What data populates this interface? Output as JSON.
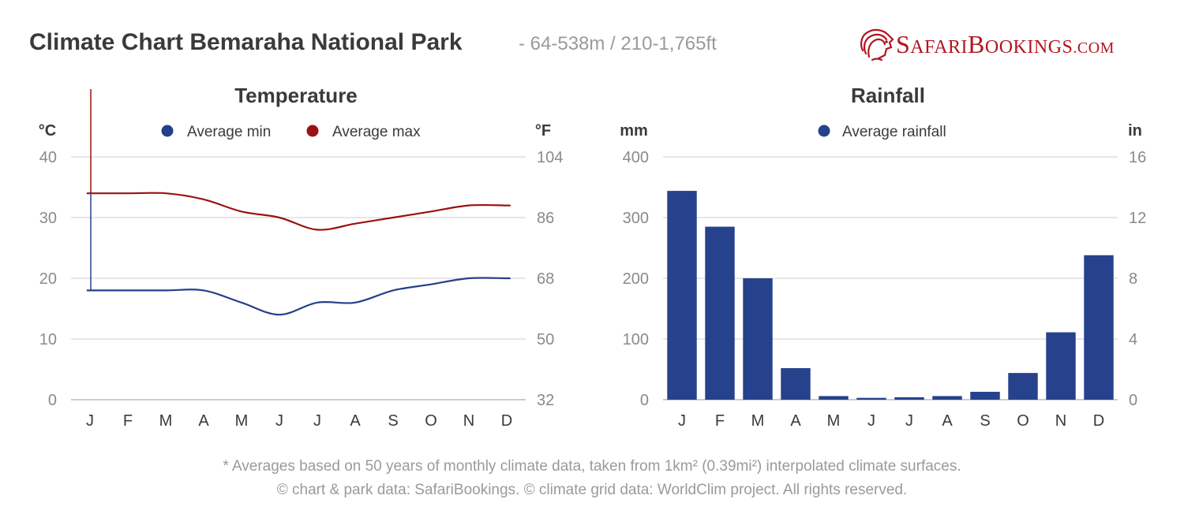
{
  "header": {
    "title": "Climate Chart Bemaraha National Park",
    "subtitle": "- 64-538m / 210-1,765ft",
    "logo": {
      "first": "S",
      "first_rest": "AFARI",
      "second": "B",
      "second_rest": "OOKINGS",
      "domain": ".COM",
      "icon": "lion-head-icon",
      "color": "#b1151f"
    }
  },
  "footer": {
    "line1": "* Averages based on 50 years of monthly climate data, taken from 1km² (0.39mi²) interpolated climate surfaces.",
    "line2": "© chart & park data: SafariBookings. © climate grid data: WorldClim project. All rights reserved."
  },
  "chart_data": [
    {
      "type": "line",
      "title": "Temperature",
      "ylabel_left": "°C",
      "ylabel_right": "°F",
      "categories": [
        "J",
        "F",
        "M",
        "A",
        "M",
        "J",
        "J",
        "A",
        "S",
        "O",
        "N",
        "D"
      ],
      "ylim": [
        0,
        40
      ],
      "yticks_left": [
        "40",
        "30",
        "20",
        "10",
        "0"
      ],
      "yticks_right": [
        "104",
        "86",
        "68",
        "50",
        "32"
      ],
      "grid": true,
      "legend": "top-center",
      "series": [
        {
          "name": "Average min",
          "color": "#263f8a",
          "values": [
            18,
            18,
            18,
            18,
            16,
            14,
            16,
            16,
            18,
            19,
            20,
            20
          ]
        },
        {
          "name": "Average max",
          "color": "#9b1212",
          "values": [
            34,
            34,
            34,
            33,
            31,
            30,
            28,
            29,
            30,
            31,
            32,
            32
          ]
        }
      ]
    },
    {
      "type": "bar",
      "title": "Rainfall",
      "ylabel_left": "mm",
      "ylabel_right": "in",
      "categories": [
        "J",
        "F",
        "M",
        "A",
        "M",
        "J",
        "J",
        "A",
        "S",
        "O",
        "N",
        "D"
      ],
      "ylim": [
        0,
        400
      ],
      "yticks_left": [
        "400",
        "300",
        "200",
        "100",
        "0"
      ],
      "yticks_right": [
        "16",
        "12",
        "8",
        "4",
        "0"
      ],
      "grid": true,
      "legend": "top-center",
      "series": [
        {
          "name": "Average rainfall",
          "color": "#27428c",
          "values": [
            344,
            285,
            200,
            52,
            6,
            3,
            4,
            6,
            13,
            44,
            111,
            238
          ]
        }
      ]
    }
  ]
}
